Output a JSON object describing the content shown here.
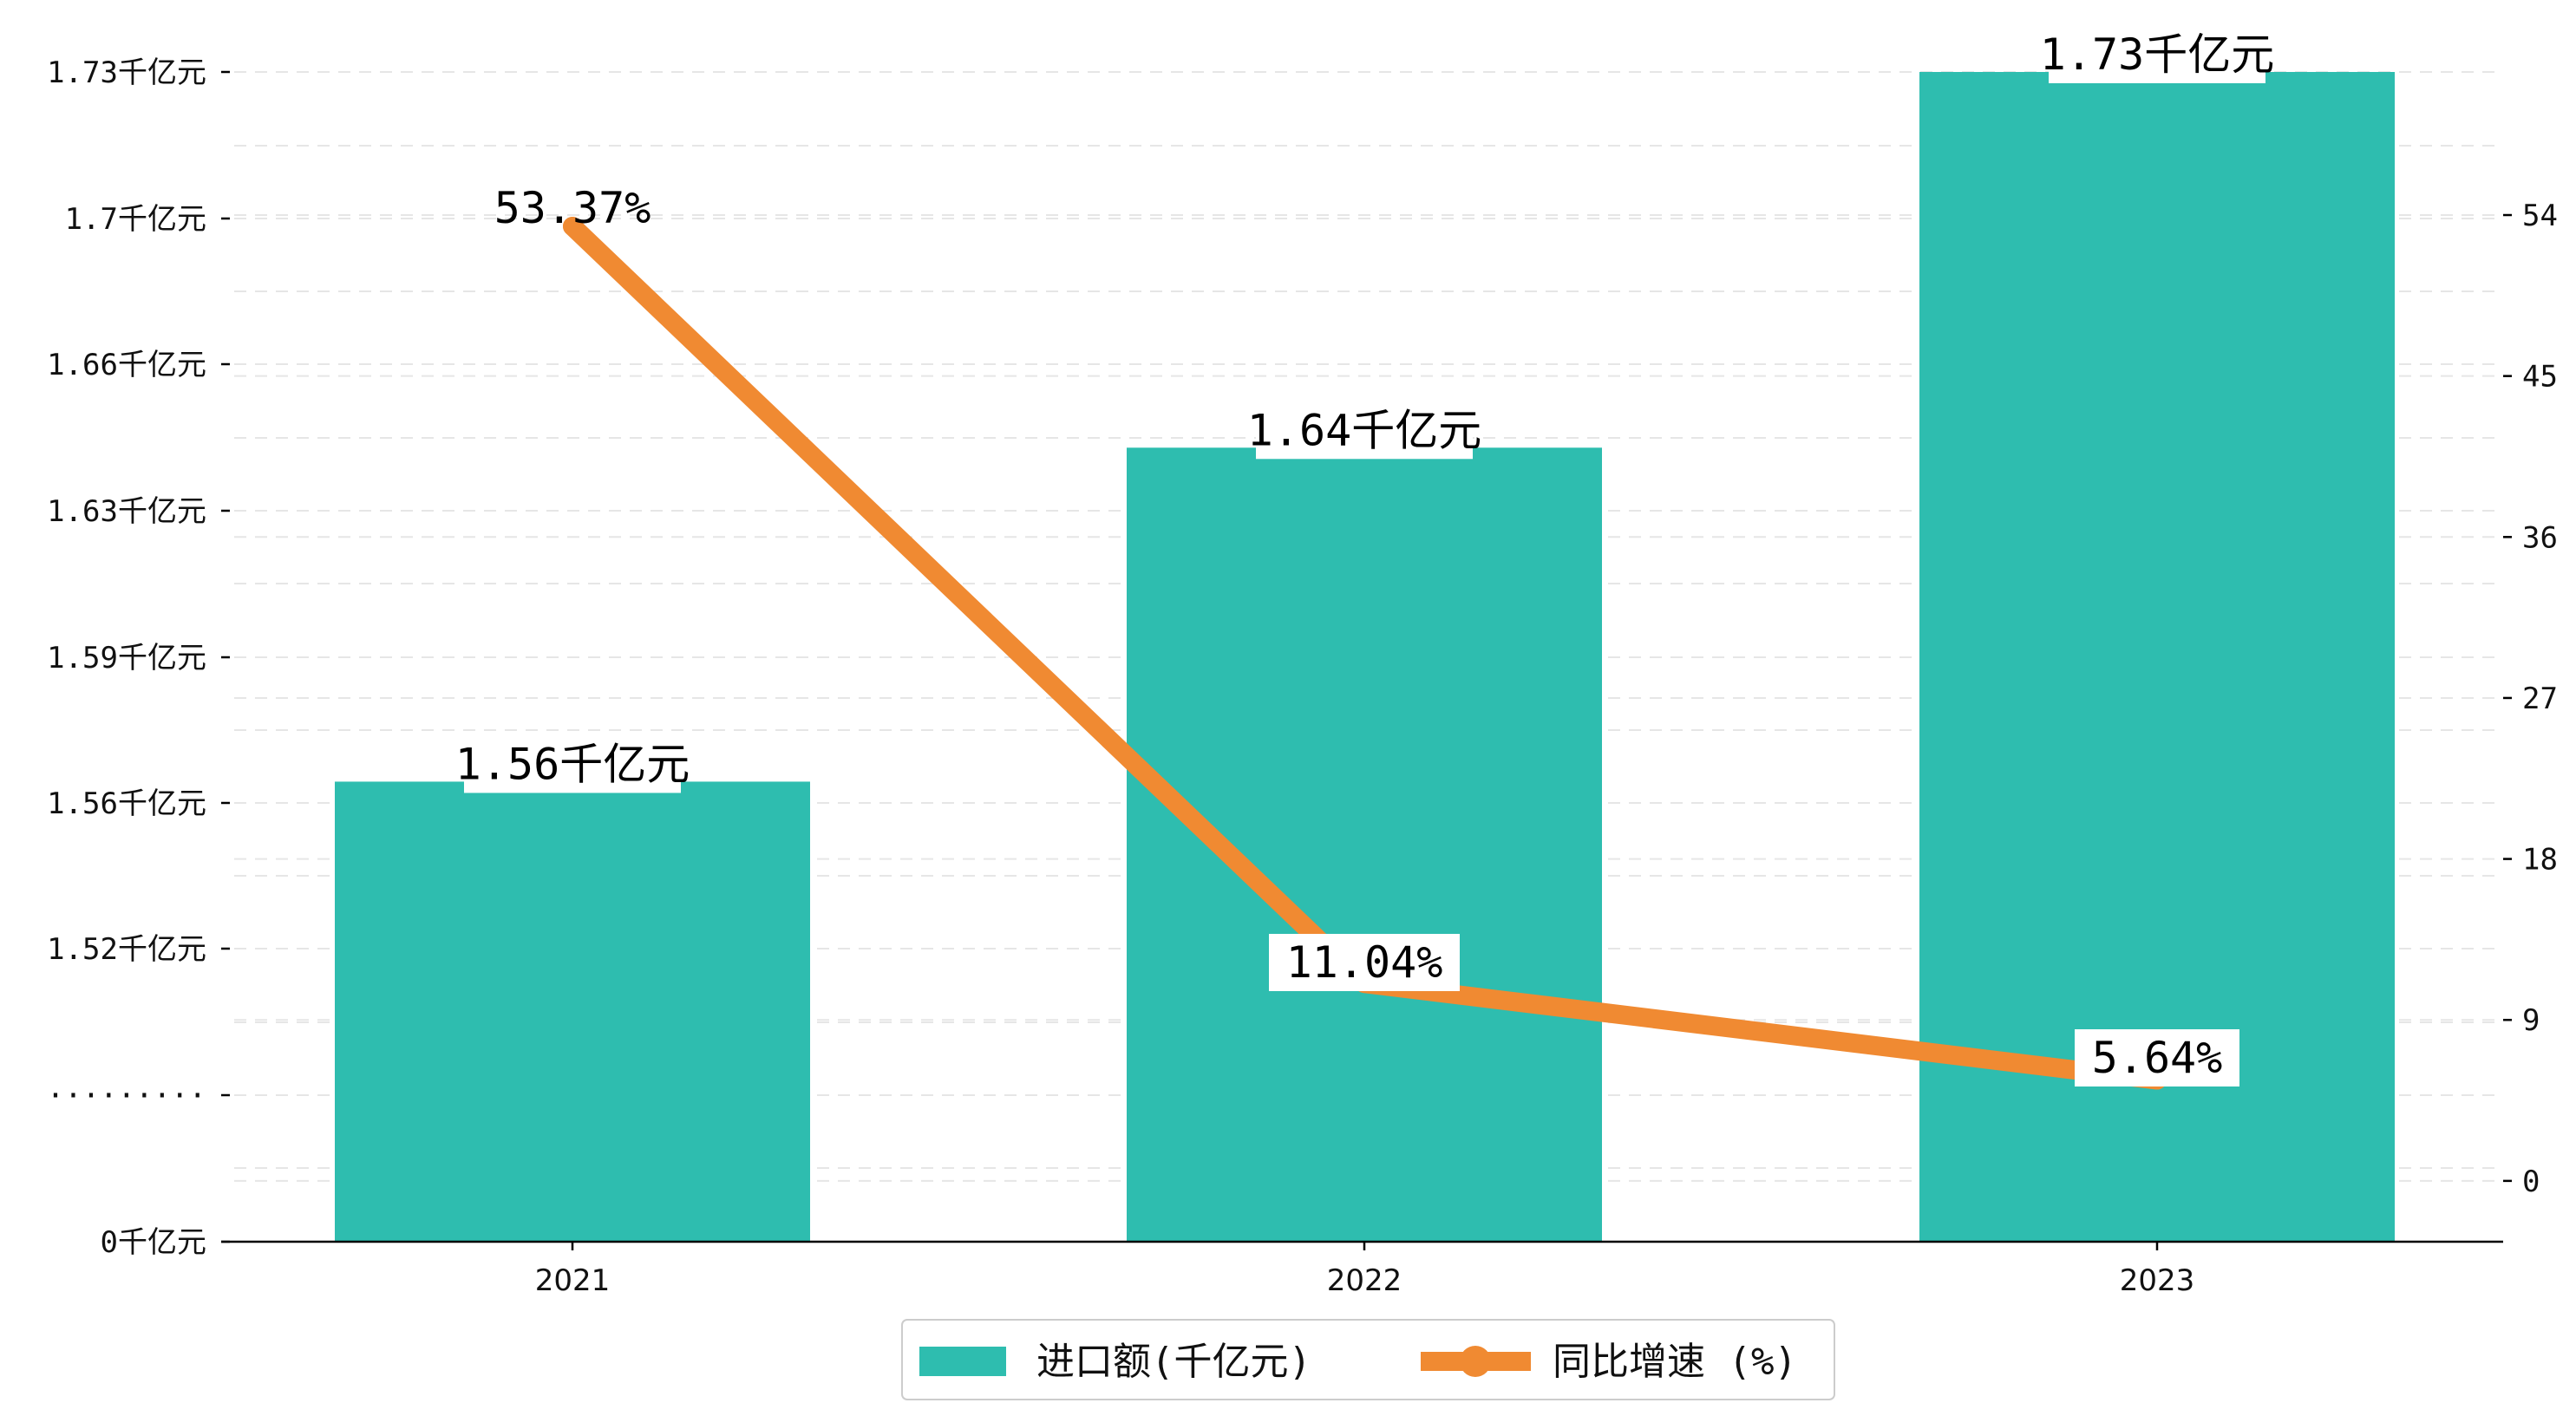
{
  "chart_data": {
    "type": "bar",
    "categories": [
      "2021",
      "2022",
      "2023"
    ],
    "series": [
      {
        "name": "进口额(千亿元)",
        "type": "bar",
        "axis": "left",
        "values": [
          1.56,
          1.64,
          1.73
        ],
        "labels": [
          "1.56千亿元",
          "1.64千亿元",
          "1.73千亿元"
        ],
        "color": "#2ebdaf"
      },
      {
        "name": "同比增速 (%)",
        "type": "line",
        "axis": "right",
        "values": [
          53.37,
          11.04,
          5.64
        ],
        "labels": [
          "53.37%",
          "11.04%",
          "5.64%"
        ],
        "color": "#f08a32"
      }
    ],
    "left_axis": {
      "tick_labels": [
        "0千亿元",
        "·········",
        "1.52千亿元",
        "1.56千亿元",
        "1.59千亿元",
        "1.63千亿元",
        "1.66千亿元",
        "1.7千亿元",
        "1.73千亿元"
      ],
      "broken": true
    },
    "right_axis": {
      "ticks": [
        0,
        9,
        18,
        27,
        36,
        45,
        54
      ],
      "range": [
        -3.4,
        62
      ]
    },
    "grid": true,
    "legend_position": "bottom-center"
  }
}
